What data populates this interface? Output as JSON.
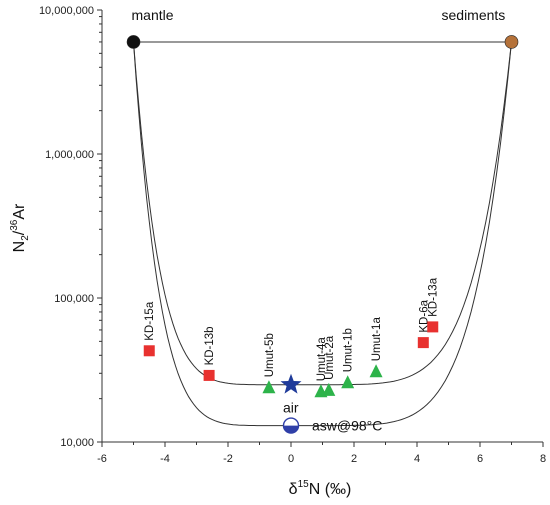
{
  "chart_data": {
    "type": "scatter",
    "xlabel": "δ15N (‰)",
    "ylabel": "N2/36Ar",
    "yscale": "log",
    "xlim": [
      -6,
      8
    ],
    "ylim": [
      10000,
      10000000
    ],
    "x_ticks": [
      "-6",
      "-4",
      "-2",
      "0",
      "2",
      "4",
      "6",
      "8"
    ],
    "y_ticks": [
      "10,000",
      "100,000",
      "1,000,000",
      "10,000,000"
    ],
    "grid": false,
    "endmembers": [
      {
        "label": "mantle",
        "x": -5,
        "y": 6000000,
        "color": "#111111"
      },
      {
        "label": "sediments",
        "x": 7,
        "y": 6000000,
        "color": "#b5723a"
      },
      {
        "label": "air",
        "x": 0,
        "y": 25000,
        "color": "#1f3b9a",
        "marker": "star"
      },
      {
        "label": "asw@98°C",
        "x": 0,
        "y": 13000,
        "color": "#2f3fa8",
        "marker": "half-circle"
      }
    ],
    "series": [
      {
        "color": "#e8312f",
        "marker": "square",
        "points": [
          {
            "label": "KD-15a",
            "x": -4.5,
            "y": 43000
          },
          {
            "label": "KD-13b",
            "x": -2.6,
            "y": 29000
          },
          {
            "label": "KD-6a",
            "x": 4.2,
            "y": 49000
          },
          {
            "label": "KD-13a",
            "x": 4.5,
            "y": 63000
          }
        ]
      },
      {
        "color": "#2db34a",
        "marker": "triangle",
        "points": [
          {
            "label": "Umut-5b",
            "x": -0.7,
            "y": 24000
          },
          {
            "label": "Umut-4a",
            "x": 0.95,
            "y": 22500
          },
          {
            "label": "Umut-2a",
            "x": 1.2,
            "y": 23000
          },
          {
            "label": "Umut-1b",
            "x": 1.8,
            "y": 26000
          },
          {
            "label": "Umut-1a",
            "x": 2.7,
            "y": 31000
          }
        ]
      }
    ],
    "mixing_curves": [
      {
        "name": "mantle-air-sediments",
        "through": [
          "mantle",
          "air",
          "sediments"
        ]
      },
      {
        "name": "mantle-asw-sediments",
        "through": [
          "mantle",
          "asw@98°C",
          "sediments"
        ]
      }
    ]
  }
}
